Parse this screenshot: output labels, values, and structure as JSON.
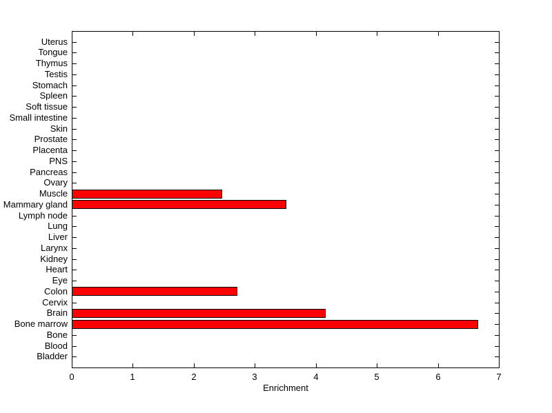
{
  "figure": {
    "background_color": "#FFFFFF",
    "axis_color": "#000000",
    "text_color": "#000000"
  },
  "chart_data": {
    "type": "bar",
    "orientation": "horizontal",
    "title": "",
    "xlabel": "Enrichment",
    "ylabel": "",
    "xlim": [
      0,
      7
    ],
    "x_ticks": [
      0,
      1,
      2,
      3,
      4,
      5,
      6,
      7
    ],
    "grid": false,
    "legend": null,
    "bar_color": "#FF0000",
    "bar_edge_color": "#000000",
    "categories_top_to_bottom": [
      "Uterus",
      "Tongue",
      "Thymus",
      "Testis",
      "Stomach",
      "Spleen",
      "Soft tissue",
      "Small intestine",
      "Skin",
      "Prostate",
      "Placenta",
      "PNS",
      "Pancreas",
      "Ovary",
      "Muscle",
      "Mammary gland",
      "Lymph node",
      "Lung",
      "Liver",
      "Larynx",
      "Kidney",
      "Heart",
      "Eye",
      "Colon",
      "Cervix",
      "Brain",
      "Bone marrow",
      "Bone",
      "Blood",
      "Bladder"
    ],
    "values": [
      0,
      0,
      0,
      0,
      0,
      0,
      0,
      0,
      0,
      0,
      0,
      0,
      0,
      0,
      2.45,
      3.5,
      0,
      0,
      0,
      0,
      0,
      0,
      0,
      2.7,
      0,
      4.15,
      6.65,
      0,
      0,
      0
    ]
  }
}
